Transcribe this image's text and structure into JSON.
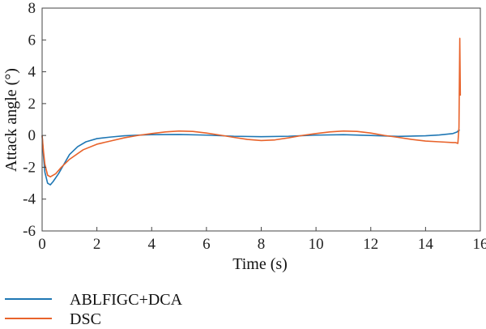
{
  "chart_data": {
    "type": "line",
    "xlabel": "Time (s)",
    "ylabel": "Attack angle (°)",
    "xlim": [
      0,
      16
    ],
    "ylim": [
      -6,
      8
    ],
    "x_ticks": [
      0,
      2,
      4,
      6,
      8,
      10,
      12,
      14,
      16
    ],
    "y_ticks": [
      -6,
      -4,
      -2,
      0,
      2,
      4,
      6,
      8
    ],
    "x_tick_labels": [
      "0",
      "2",
      "4",
      "6",
      "8",
      "10",
      "12",
      "14",
      "16"
    ],
    "y_tick_labels": [
      "-6",
      "-4",
      "-2",
      "0",
      "2",
      "4",
      "6",
      "8"
    ],
    "grid": false,
    "legend_position": "bottom-left",
    "series": [
      {
        "name": "ABLFIGC+DCA",
        "color": "#1f77b4",
        "x": [
          0,
          0.05,
          0.1,
          0.2,
          0.3,
          0.4,
          0.6,
          0.8,
          1.0,
          1.3,
          1.6,
          2.0,
          2.5,
          3.0,
          3.5,
          4.0,
          5.0,
          6.0,
          7.0,
          8.0,
          9.0,
          10.0,
          11.0,
          12.0,
          13.0,
          14.0,
          14.5,
          15.0,
          15.15,
          15.2,
          15.25
        ],
        "y": [
          0,
          -1.3,
          -2.3,
          -3.0,
          -3.1,
          -2.9,
          -2.4,
          -1.8,
          -1.2,
          -0.7,
          -0.4,
          -0.2,
          -0.1,
          -0.02,
          0.02,
          0.05,
          0.06,
          0.02,
          -0.05,
          -0.08,
          -0.05,
          0.02,
          0.05,
          0.0,
          -0.06,
          -0.02,
          0.03,
          0.12,
          0.22,
          0.3,
          0.35
        ]
      },
      {
        "name": "DSC",
        "color": "#e8632b",
        "x": [
          0,
          0.05,
          0.1,
          0.2,
          0.3,
          0.5,
          0.7,
          1.0,
          1.5,
          2.0,
          2.5,
          3.0,
          3.5,
          4.0,
          4.5,
          5.0,
          5.5,
          6.0,
          6.5,
          7.0,
          7.5,
          8.0,
          8.5,
          9.0,
          9.5,
          10.0,
          10.5,
          11.0,
          11.5,
          12.0,
          12.5,
          13.0,
          13.5,
          14.0,
          14.5,
          15.0,
          15.1,
          15.18,
          15.22,
          15.25,
          15.27
        ],
        "y": [
          0,
          -1.0,
          -1.8,
          -2.5,
          -2.6,
          -2.4,
          -2.0,
          -1.5,
          -0.9,
          -0.55,
          -0.35,
          -0.15,
          0.0,
          0.12,
          0.22,
          0.28,
          0.25,
          0.15,
          0.02,
          -0.12,
          -0.25,
          -0.32,
          -0.28,
          -0.15,
          0.0,
          0.12,
          0.22,
          0.28,
          0.25,
          0.15,
          0.0,
          -0.12,
          -0.25,
          -0.35,
          -0.4,
          -0.45,
          -0.45,
          -0.5,
          0.5,
          6.1,
          2.5
        ]
      }
    ]
  }
}
